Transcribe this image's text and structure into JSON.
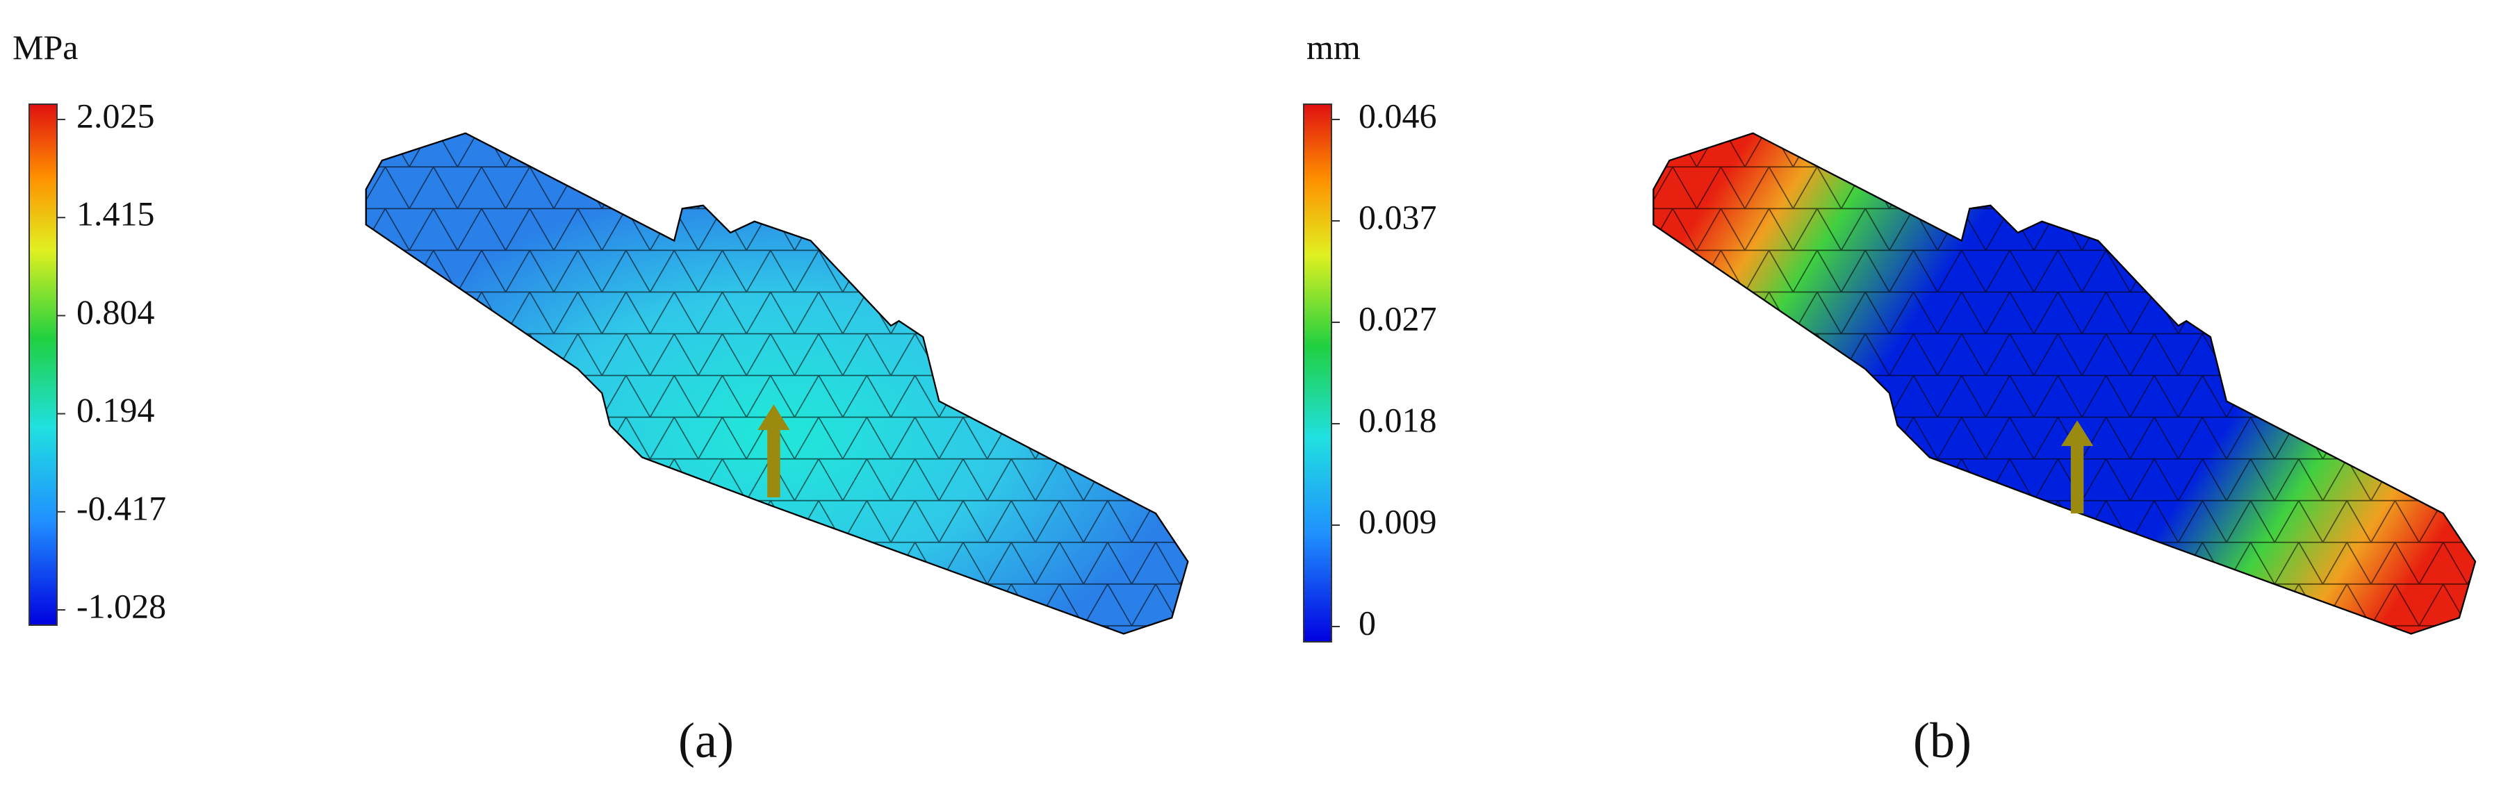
{
  "panels": [
    {
      "unit": "MPa",
      "ticks": [
        "2.025",
        "1.415",
        "0.804",
        "0.194",
        "-0.417",
        "-1.028"
      ],
      "label": "(a)"
    },
    {
      "unit": "mm",
      "ticks": [
        "0.046",
        "0.037",
        "0.027",
        "0.018",
        "0.009",
        "0"
      ],
      "label": "(b)"
    }
  ]
}
